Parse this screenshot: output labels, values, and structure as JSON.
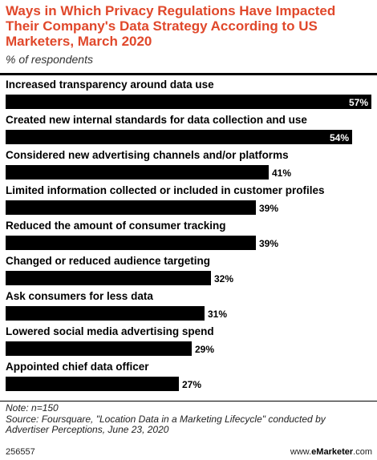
{
  "header": {
    "title_lines": [
      "Ways in Which Privacy Regulations Have Impacted",
      "Their Company's Data Strategy According to US",
      "Marketers, March 2020"
    ],
    "subtitle": "% of respondents"
  },
  "chart_data": {
    "type": "bar",
    "orientation": "horizontal",
    "title": "Ways in Which Privacy Regulations Have Impacted Their Company's Data Strategy According to US Marketers, March 2020",
    "subtitle": "% of respondents",
    "categories": [
      "Increased transparency around data use",
      "Created new internal standards for data collection and use",
      "Considered new advertising channels and/or platforms",
      "Limited information collected or included in customer profiles",
      "Reduced the amount of consumer tracking",
      "Changed or reduced audience targeting",
      "Ask consumers for less data",
      "Lowered social media advertising spend",
      "Appointed chief data officer"
    ],
    "values": [
      57,
      54,
      41,
      39,
      39,
      32,
      31,
      29,
      27
    ],
    "value_labels": [
      "57%",
      "54%",
      "41%",
      "39%",
      "39%",
      "32%",
      "31%",
      "29%",
      "27%"
    ],
    "unit": "%",
    "xlim": [
      0,
      57
    ],
    "bar_color": "#000000",
    "grid": false
  },
  "notes": {
    "lines": [
      "Note: n=150",
      "Source: Foursquare, \"Location Data in a Marketing Lifecycle\" conducted by",
      "Advertiser Perceptions, June 23, 2020"
    ]
  },
  "footer": {
    "chart_id": "256557",
    "brand_prefix": "www.",
    "brand_name": "eMarketer",
    "brand_suffix": ".com"
  },
  "colors": {
    "title": "#e0482b",
    "bar": "#000000",
    "background": "#ffffff"
  }
}
